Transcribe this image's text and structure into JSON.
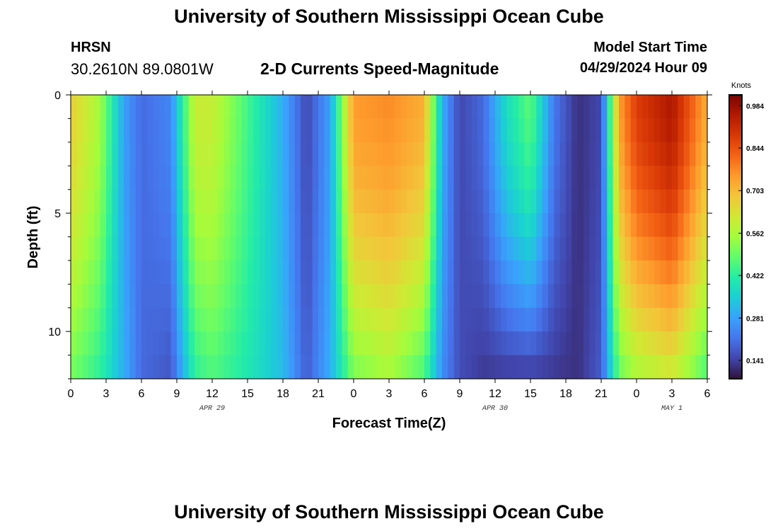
{
  "header": {
    "title": "University of Southern Mississippi Ocean Cube",
    "station": "HRSN",
    "coordinates": "30.2610N  89.0801W",
    "subtitle": "2-D Currents Speed-Magnitude",
    "model_start_label": "Model Start Time",
    "model_start_value": "04/29/2024 Hour 09"
  },
  "footer": {
    "title": "University of Southern Mississippi Ocean Cube"
  },
  "colors": {
    "colormap": [
      "#30123b",
      "#4145ab",
      "#4675ed",
      "#39a2fc",
      "#1bcfd4",
      "#24eca6",
      "#61fc6c",
      "#a4fc3b",
      "#d1e834",
      "#f3c63a",
      "#fe9b2d",
      "#f36315",
      "#d93806",
      "#b11901",
      "#7a0403"
    ]
  },
  "chart_data": {
    "type": "heatmap",
    "title": "2-D Currents Speed-Magnitude",
    "xlabel": "Forecast Time(Z)",
    "ylabel": "Depth (ft)",
    "x_ticks": [
      "0",
      "3",
      "6",
      "9",
      "12",
      "15",
      "18",
      "21",
      "0",
      "3",
      "6",
      "9",
      "12",
      "15",
      "18",
      "21",
      "0",
      "3",
      "6"
    ],
    "x_hours_range": [
      0,
      54
    ],
    "day_labels": [
      {
        "label": "APR 29",
        "hour": 12
      },
      {
        "label": "APR 30",
        "hour": 36
      },
      {
        "label": "MAY 1",
        "hour": 51
      }
    ],
    "y_ticks": [
      0,
      5,
      10
    ],
    "ylim": [
      0,
      12
    ],
    "colorbar": {
      "title": "Knots",
      "ticks": [
        "0.141",
        "0.281",
        "0.422",
        "0.562",
        "0.703",
        "0.844",
        "0.984"
      ],
      "range": [
        0.08,
        1.02
      ]
    },
    "profile": {
      "hours": [
        0,
        2.5,
        4.5,
        6,
        8.5,
        10.5,
        12,
        15,
        18,
        20,
        22,
        24,
        27,
        30,
        31.5,
        33,
        35,
        37,
        39,
        41,
        43,
        45,
        46.5,
        48,
        51,
        54
      ],
      "surface_speed": [
        0.67,
        0.55,
        0.28,
        0.2,
        0.24,
        0.6,
        0.6,
        0.45,
        0.3,
        0.15,
        0.28,
        0.75,
        0.77,
        0.72,
        0.3,
        0.15,
        0.2,
        0.38,
        0.48,
        0.22,
        0.12,
        0.15,
        0.74,
        0.88,
        0.96,
        0.72
      ],
      "bottom_speed": [
        0.5,
        0.42,
        0.3,
        0.2,
        0.17,
        0.42,
        0.46,
        0.4,
        0.32,
        0.18,
        0.3,
        0.5,
        0.55,
        0.45,
        0.25,
        0.16,
        0.13,
        0.13,
        0.13,
        0.13,
        0.12,
        0.18,
        0.48,
        0.55,
        0.6,
        0.45
      ]
    }
  }
}
